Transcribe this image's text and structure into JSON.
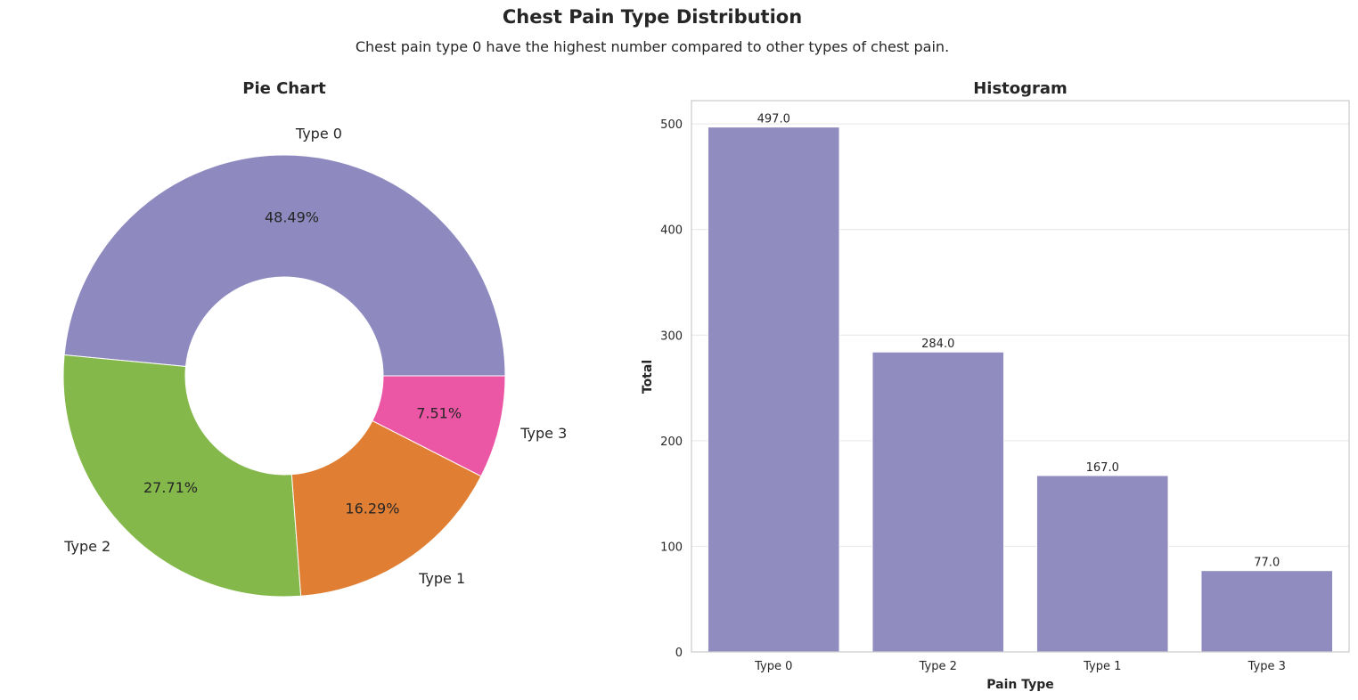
{
  "figure": {
    "title": "Chest Pain Type Distribution",
    "subtitle": "Chest pain type 0 have the highest number compared to other types of chest pain."
  },
  "chart_data": [
    {
      "type": "pie",
      "variant": "donut",
      "title": "Pie Chart",
      "categories": [
        "Type 0",
        "Type 2",
        "Type 1",
        "Type 3"
      ],
      "values": [
        48.49,
        27.71,
        16.29,
        7.51
      ],
      "value_labels": [
        "48.49%",
        "27.71%",
        "16.29%",
        "7.51%"
      ],
      "colors": [
        "#8e8abf",
        "#84b84a",
        "#e07f34",
        "#eb56a5"
      ],
      "start_angle_deg": 0,
      "direction": "counterclockwise"
    },
    {
      "type": "bar",
      "title": "Histogram",
      "categories": [
        "Type 0",
        "Type 2",
        "Type 1",
        "Type 3"
      ],
      "values": [
        497,
        284,
        167,
        77
      ],
      "value_labels": [
        "497.0",
        "284.0",
        "167.0",
        "77.0"
      ],
      "xlabel": "Pain Type",
      "ylabel": "Total",
      "ylim": [
        0,
        522
      ],
      "yticks": [
        0,
        100,
        200,
        300,
        400,
        500
      ],
      "grid": true,
      "bar_color": "#8e8abf"
    }
  ]
}
